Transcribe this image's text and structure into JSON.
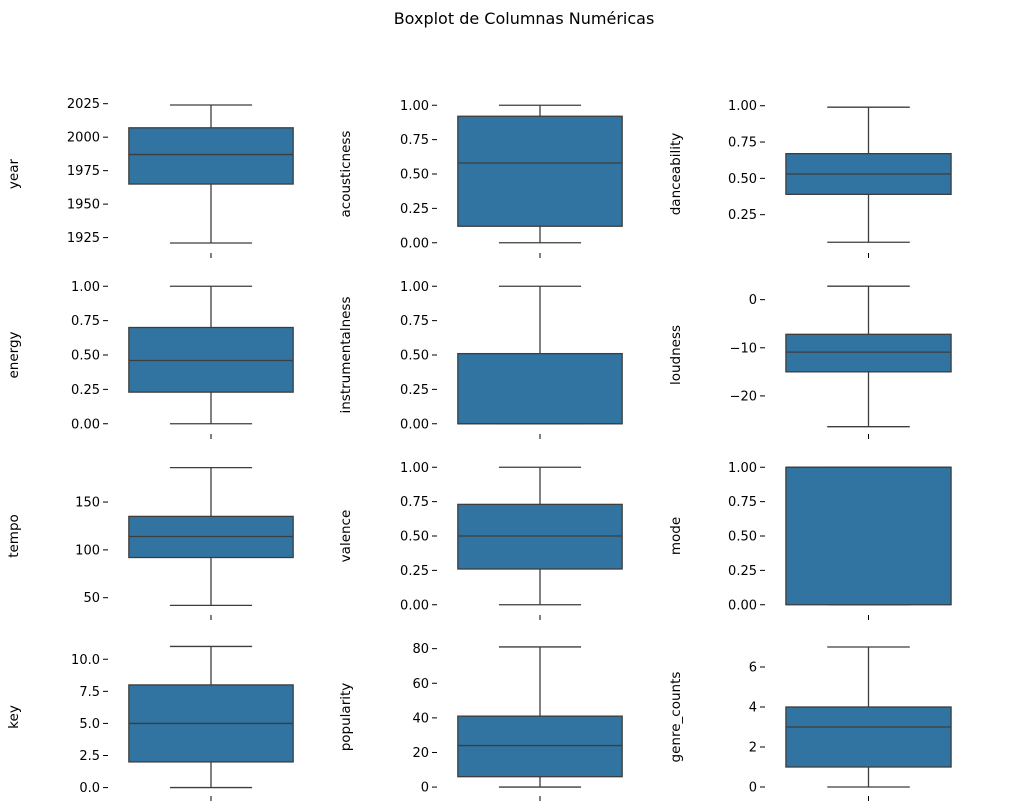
{
  "chart_data": {
    "type": "boxplot",
    "title": "Boxplot de Columnas Numéricas",
    "box_color": "#3274a1",
    "edge_color": "#3d3d3d",
    "grid": false,
    "panels": [
      {
        "ylabel": "year",
        "ylim": [
          1915,
          2030
        ],
        "ticks": [
          1925,
          1950,
          1975,
          2000,
          2025
        ],
        "tick_labels": [
          "1925",
          "1950",
          "1975",
          "2000",
          "2025"
        ],
        "whisker_low": 1921,
        "q1": 1965,
        "median": 1987,
        "q3": 2007,
        "whisker_high": 2024
      },
      {
        "ylabel": "acousticness",
        "ylim": [
          -0.06,
          1.06
        ],
        "ticks": [
          0,
          0.25,
          0.5,
          0.75,
          1.0
        ],
        "tick_labels": [
          "0.00",
          "0.25",
          "0.50",
          "0.75",
          "1.00"
        ],
        "whisker_low": 0.0,
        "q1": 0.12,
        "median": 0.58,
        "q3": 0.92,
        "whisker_high": 1.0
      },
      {
        "ylabel": "danceability",
        "ylim": [
          0.0,
          1.06
        ],
        "ticks": [
          0.25,
          0.5,
          0.75,
          1.0
        ],
        "tick_labels": [
          "0.25",
          "0.50",
          "0.75",
          "1.00"
        ],
        "whisker_low": 0.06,
        "q1": 0.39,
        "median": 0.53,
        "q3": 0.67,
        "whisker_high": 0.99
      },
      {
        "ylabel": "energy",
        "ylim": [
          -0.06,
          1.06
        ],
        "ticks": [
          0,
          0.25,
          0.5,
          0.75,
          1.0
        ],
        "tick_labels": [
          "0.00",
          "0.25",
          "0.50",
          "0.75",
          "1.00"
        ],
        "whisker_low": 0.0,
        "q1": 0.23,
        "median": 0.46,
        "q3": 0.7,
        "whisker_high": 1.0
      },
      {
        "ylabel": "instrumentalness",
        "ylim": [
          -0.06,
          1.06
        ],
        "ticks": [
          0,
          0.25,
          0.5,
          0.75,
          1.0
        ],
        "tick_labels": [
          "0.00",
          "0.25",
          "0.50",
          "0.75",
          "1.00"
        ],
        "whisker_low": 0.0,
        "q1": 0.0,
        "median": 0.0,
        "q3": 0.51,
        "whisker_high": 1.0
      },
      {
        "ylabel": "loudness",
        "ylim": [
          -27.5,
          4.5
        ],
        "ticks": [
          -20,
          -10,
          0
        ],
        "tick_labels": [
          "−20",
          "−10",
          "0"
        ],
        "whisker_low": -26.4,
        "q1": -15.0,
        "median": -10.9,
        "q3": -7.2,
        "whisker_high": 2.8
      },
      {
        "ylabel": "tempo",
        "ylim": [
          34,
          195
        ],
        "ticks": [
          50,
          100,
          150
        ],
        "tick_labels": [
          "50",
          "100",
          "150"
        ],
        "whisker_low": 42,
        "q1": 92,
        "median": 114,
        "q3": 135,
        "whisker_high": 186
      },
      {
        "ylabel": "valence",
        "ylim": [
          -0.06,
          1.06
        ],
        "ticks": [
          0,
          0.25,
          0.5,
          0.75,
          1.0
        ],
        "tick_labels": [
          "0.00",
          "0.25",
          "0.50",
          "0.75",
          "1.00"
        ],
        "whisker_low": 0.0,
        "q1": 0.26,
        "median": 0.5,
        "q3": 0.73,
        "whisker_high": 1.0
      },
      {
        "ylabel": "mode",
        "ylim": [
          -0.06,
          1.06
        ],
        "ticks": [
          0,
          0.25,
          0.5,
          0.75,
          1.0
        ],
        "tick_labels": [
          "0.00",
          "0.25",
          "0.50",
          "0.75",
          "1.00"
        ],
        "whisker_low": 0.0,
        "q1": 0.0,
        "median": 1.0,
        "q3": 1.0,
        "whisker_high": 1.0
      },
      {
        "ylabel": "key",
        "ylim": [
          -0.5,
          11.5
        ],
        "ticks": [
          0,
          2.5,
          5,
          7.5,
          10
        ],
        "tick_labels": [
          "0.0",
          "2.5",
          "5.0",
          "7.5",
          "10.0"
        ],
        "whisker_low": 0,
        "q1": 2,
        "median": 5,
        "q3": 8,
        "whisker_high": 11
      },
      {
        "ylabel": "popularity",
        "ylim": [
          -4,
          85
        ],
        "ticks": [
          0,
          20,
          40,
          60,
          80
        ],
        "tick_labels": [
          "0",
          "20",
          "40",
          "60",
          "80"
        ],
        "whisker_low": 0,
        "q1": 6,
        "median": 24,
        "q3": 41,
        "whisker_high": 81
      },
      {
        "ylabel": "genre_counts",
        "ylim": [
          -0.35,
          7.35
        ],
        "ticks": [
          0,
          2,
          4,
          6
        ],
        "tick_labels": [
          "0",
          "2",
          "4",
          "6"
        ],
        "whisker_low": 0,
        "q1": 1,
        "median": 3,
        "q3": 4,
        "whisker_high": 7
      }
    ]
  }
}
